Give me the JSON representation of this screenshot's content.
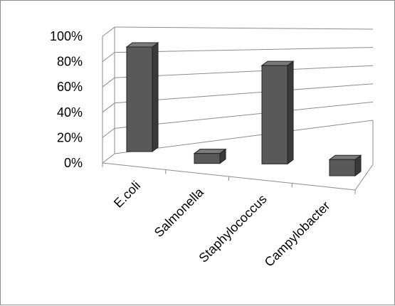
{
  "chart_data": {
    "type": "bar",
    "three_d": true,
    "categories": [
      "E.coli",
      "Salmonella",
      "Staphylococcus",
      "Campylobacter"
    ],
    "values": [
      84,
      8,
      79,
      13
    ],
    "value_format": "percent",
    "ylim": [
      0,
      100
    ],
    "yticks": [
      "0%",
      "20%",
      "40%",
      "60%",
      "80%",
      "100%"
    ],
    "title": "",
    "xlabel": "",
    "ylabel": "",
    "grid": true,
    "legend": "none",
    "colors": {
      "bar_front": "#595959",
      "bar_side": "#3a3a3a",
      "bar_top": "#7a7a7a",
      "grid": "#8c8c8c"
    }
  }
}
